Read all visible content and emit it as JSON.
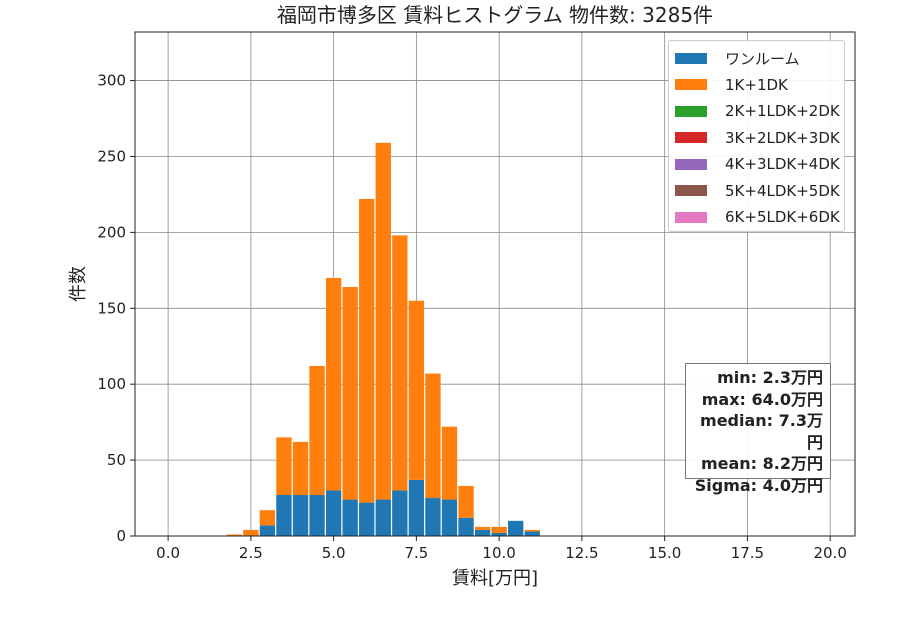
{
  "chart_data": {
    "type": "bar",
    "stacked": true,
    "title": "福岡市博多区 賃料ヒストグラム 物件数: 3285件",
    "xlabel": "賃料[万円]",
    "ylabel": "件数",
    "xlim": [
      -1.0,
      20.75
    ],
    "ylim": [
      0,
      332
    ],
    "x_ticks": [
      0,
      2.5,
      5,
      7.5,
      10,
      12.5,
      15,
      17.5,
      20
    ],
    "x_tick_labels": [
      "0.0",
      "2.5",
      "5.0",
      "7.5",
      "10.0",
      "12.5",
      "15.0",
      "17.5",
      "20.0"
    ],
    "y_ticks": [
      0,
      50,
      100,
      150,
      200,
      250,
      300
    ],
    "y_tick_labels": [
      "0",
      "50",
      "100",
      "150",
      "200",
      "250",
      "300"
    ],
    "grid": true,
    "legend_position": "top-right",
    "bin_width": 0.5,
    "x": [
      2.0,
      2.5,
      3.0,
      3.5,
      4.0,
      4.5,
      5.0,
      5.5,
      6.0,
      6.5,
      7.0,
      7.5,
      8.0,
      8.5,
      9.0,
      9.5,
      10.0,
      10.5,
      11.0,
      11.5,
      12.0,
      12.5,
      13.0,
      13.5,
      14.0,
      14.5,
      15.0,
      15.5,
      16.0,
      16.5,
      17.0,
      17.5,
      18.0,
      18.5,
      19.0,
      19.5
    ],
    "series": [
      {
        "name": "ワンルーム",
        "color": "#1f77b4",
        "values": [
          0,
          0,
          7,
          27,
          27,
          27,
          30,
          24,
          22,
          24,
          30,
          37,
          25,
          24,
          12,
          4,
          2,
          10,
          3,
          0,
          0,
          0,
          0,
          0,
          0,
          0,
          0,
          0,
          0,
          0,
          0,
          0,
          0,
          0,
          0,
          0
        ]
      },
      {
        "name": "1K+1DK",
        "color": "#ff7f0e",
        "values": [
          1,
          4,
          10,
          38,
          35,
          85,
          140,
          140,
          200,
          235,
          168,
          118,
          82,
          48,
          21,
          2,
          4,
          0,
          1,
          0,
          0,
          0,
          0,
          0,
          0,
          0,
          0,
          0,
          0,
          0,
          0,
          0,
          0,
          0,
          0,
          0
        ]
      },
      {
        "name": "2K+1LDK+2DK",
        "color": "#2ca02c",
        "values": [
          0,
          0,
          0,
          0,
          0,
          0,
          0,
          0,
          0,
          0,
          0,
          0,
          0,
          0,
          0,
          0,
          0,
          0,
          0,
          0,
          0,
          0,
          0,
          0,
          0,
          0,
          0,
          0,
          0,
          0,
          0,
          0,
          0,
          0,
          0,
          0
        ]
      },
      {
        "name": "3K+2LDK+3DK",
        "color": "#d62728",
        "values": [
          0,
          0,
          0,
          0,
          0,
          0,
          0,
          0,
          0,
          0,
          0,
          0,
          0,
          0,
          0,
          0,
          0,
          0,
          0,
          0,
          0,
          0,
          0,
          0,
          0,
          0,
          0,
          0,
          0,
          0,
          0,
          0,
          0,
          0,
          0,
          0
        ]
      },
      {
        "name": "4K+3LDK+4DK",
        "color": "#9467bd",
        "values": [
          0,
          0,
          0,
          0,
          0,
          0,
          0,
          0,
          0,
          0,
          0,
          0,
          0,
          0,
          0,
          0,
          0,
          0,
          0,
          0,
          0,
          0,
          0,
          0,
          0,
          0,
          0,
          0,
          0,
          0,
          0,
          0,
          0,
          0,
          0,
          0
        ]
      },
      {
        "name": "5K+4LDK+5DK",
        "color": "#8c564b",
        "values": [
          0,
          0,
          0,
          0,
          0,
          0,
          0,
          0,
          0,
          0,
          0,
          0,
          0,
          0,
          0,
          0,
          0,
          0,
          0,
          0,
          0,
          0,
          0,
          0,
          0,
          0,
          0,
          0,
          0,
          0,
          0,
          0,
          0,
          0,
          0,
          0
        ]
      },
      {
        "name": "6K+5LDK+6DK",
        "color": "#e377c2",
        "values": [
          0,
          0,
          0,
          0,
          0,
          0,
          0,
          0,
          0,
          0,
          0,
          0,
          0,
          0,
          0,
          0,
          0,
          0,
          0,
          0,
          0,
          0,
          0,
          0,
          0,
          0,
          0,
          0,
          0,
          0,
          0,
          0,
          0,
          0,
          0,
          0
        ]
      }
    ],
    "annotations": [
      "min: 2.3万円",
      "max: 64.0万円",
      "median: 7.3万円",
      "mean: 8.2万円",
      "Sigma: 4.0万円"
    ]
  }
}
